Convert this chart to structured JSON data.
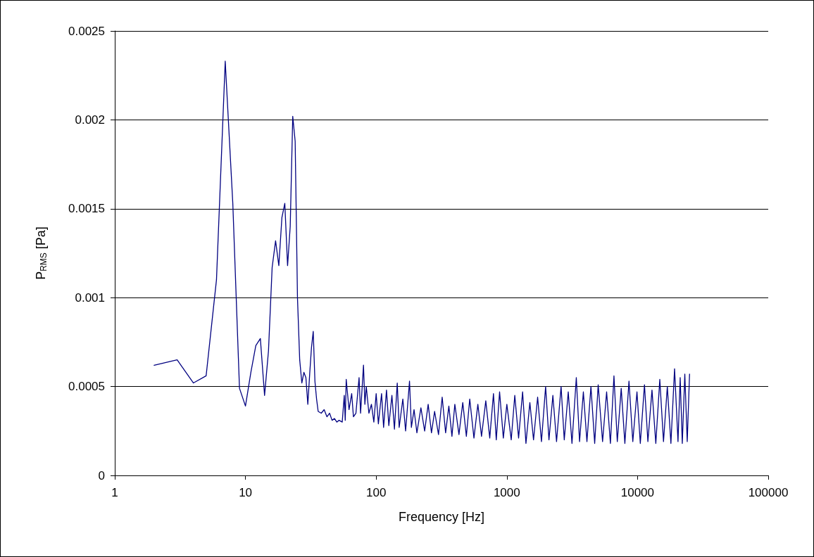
{
  "chart_data": {
    "type": "line",
    "xlabel": "Frequency [Hz]",
    "ylabel": "P$_{RMS}$ [Pa]",
    "log": "x",
    "xlim": [
      1,
      100000
    ],
    "xticks": [
      1,
      10,
      100,
      1000,
      10000,
      100000
    ],
    "ylim": [
      0,
      0.0025
    ],
    "yticks": [
      0,
      0.0005,
      0.001,
      0.0015,
      0.002,
      0.0025
    ],
    "grid": "y",
    "marker": "none",
    "series": [
      {
        "color": "#000080",
        "x": [
          2,
          3,
          4,
          5,
          6,
          7,
          8,
          9,
          10,
          11,
          12,
          13,
          14,
          15,
          16,
          17,
          18,
          19,
          20,
          21,
          22,
          23,
          24,
          25,
          26,
          27,
          28,
          29,
          30,
          31,
          32,
          33,
          34,
          35,
          36,
          38,
          40,
          42,
          44,
          46,
          48,
          50,
          52,
          55,
          57,
          58,
          59,
          62,
          65,
          67,
          70,
          74,
          76,
          80,
          82,
          84,
          88,
          92,
          96,
          100,
          104,
          110,
          114,
          120,
          125,
          132,
          138,
          145,
          150,
          160,
          168,
          180,
          186,
          195,
          205,
          220,
          235,
          250,
          265,
          280,
          300,
          320,
          340,
          360,
          380,
          400,
          430,
          460,
          490,
          520,
          560,
          600,
          640,
          690,
          740,
          790,
          830,
          880,
          940,
          1000,
          1080,
          1150,
          1230,
          1320,
          1400,
          1500,
          1600,
          1720,
          1840,
          1980,
          2100,
          2250,
          2400,
          2600,
          2750,
          2950,
          3150,
          3400,
          3600,
          3850,
          4100,
          4400,
          4700,
          5000,
          5400,
          5800,
          6200,
          6600,
          7000,
          7500,
          8000,
          8600,
          9200,
          9900,
          10500,
          11300,
          12000,
          12900,
          13800,
          14800,
          15800,
          16900,
          18000,
          19200,
          20400,
          21200,
          22000,
          23000,
          24000,
          25000
        ],
        "values": [
          0.00062,
          0.00065,
          0.00052,
          0.00056,
          0.0011,
          0.00233,
          0.00153,
          0.00049,
          0.00039,
          0.00058,
          0.00073,
          0.00077,
          0.00045,
          0.0007,
          0.00117,
          0.00132,
          0.00118,
          0.00145,
          0.00153,
          0.00118,
          0.0014,
          0.00202,
          0.00188,
          0.001,
          0.00065,
          0.00052,
          0.00058,
          0.00055,
          0.0004,
          0.00057,
          0.00072,
          0.00081,
          0.00053,
          0.00043,
          0.00036,
          0.00035,
          0.00037,
          0.00033,
          0.00035,
          0.00031,
          0.00032,
          0.0003,
          0.00031,
          0.0003,
          0.00045,
          0.00031,
          0.00054,
          0.00037,
          0.00046,
          0.00033,
          0.00035,
          0.00055,
          0.00035,
          0.00062,
          0.0004,
          0.0005,
          0.00035,
          0.0004,
          0.0003,
          0.00046,
          0.00029,
          0.00046,
          0.00027,
          0.00048,
          0.00028,
          0.00045,
          0.00026,
          0.00052,
          0.00027,
          0.00043,
          0.00025,
          0.00053,
          0.00027,
          0.00037,
          0.00024,
          0.00038,
          0.00025,
          0.0004,
          0.00024,
          0.00036,
          0.00023,
          0.00044,
          0.00024,
          0.00039,
          0.00022,
          0.0004,
          0.00023,
          0.00041,
          0.00022,
          0.00043,
          0.00021,
          0.0004,
          0.00022,
          0.00042,
          0.00021,
          0.00046,
          0.0002,
          0.00047,
          0.00021,
          0.0004,
          0.0002,
          0.00045,
          0.00021,
          0.00047,
          0.00018,
          0.00041,
          0.0002,
          0.00044,
          0.00019,
          0.0005,
          0.0002,
          0.00045,
          0.00019,
          0.0005,
          0.0002,
          0.00047,
          0.00018,
          0.00055,
          0.00019,
          0.00047,
          0.00019,
          0.0005,
          0.00018,
          0.00051,
          0.00019,
          0.00047,
          0.00018,
          0.00056,
          0.00019,
          0.00049,
          0.00018,
          0.00053,
          0.00019,
          0.00047,
          0.00018,
          0.00051,
          0.00019,
          0.00048,
          0.00018,
          0.00054,
          0.00019,
          0.0005,
          0.00018,
          0.0006,
          0.00019,
          0.00055,
          0.00018,
          0.00057,
          0.00019,
          0.00057
        ]
      }
    ]
  }
}
